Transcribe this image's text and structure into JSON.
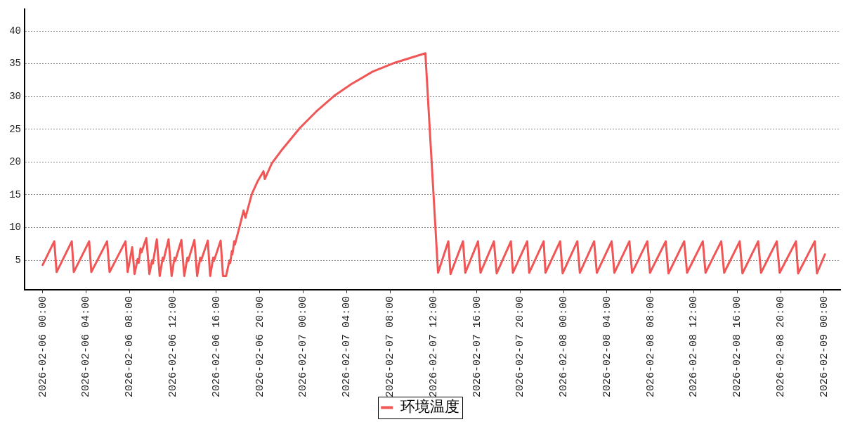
{
  "chart_data": {
    "type": "line",
    "x": [
      "2026-02-06T00:00",
      "2026-02-06T01:04",
      "2026-02-06T01:17",
      "2026-02-06T02:41",
      "2026-02-06T02:52",
      "2026-02-06T04:17",
      "2026-02-06T04:29",
      "2026-02-06T05:56",
      "2026-02-06T06:10",
      "2026-02-06T07:38",
      "2026-02-06T07:50",
      "2026-02-06T08:15",
      "2026-02-06T08:28",
      "2026-02-06T08:45",
      "2026-02-06T08:51",
      "2026-02-06T09:01",
      "2026-02-06T09:06",
      "2026-02-06T09:33",
      "2026-02-06T09:50",
      "2026-02-06T10:05",
      "2026-02-06T10:09",
      "2026-02-06T10:31",
      "2026-02-06T10:47",
      "2026-02-06T11:04",
      "2026-02-06T11:07",
      "2026-02-06T11:36",
      "2026-02-06T11:53",
      "2026-02-06T12:09",
      "2026-02-06T12:13",
      "2026-02-06T12:47",
      "2026-02-06T13:03",
      "2026-02-06T13:20",
      "2026-02-06T13:24",
      "2026-02-06T13:59",
      "2026-02-06T14:14",
      "2026-02-06T14:31",
      "2026-02-06T14:35",
      "2026-02-06T15:13",
      "2026-02-06T15:26",
      "2026-02-06T15:43",
      "2026-02-06T15:47",
      "2026-02-06T16:24",
      "2026-02-06T16:37",
      "2026-02-06T16:54",
      "2026-02-06T17:13",
      "2026-02-06T17:17",
      "2026-02-06T17:26",
      "2026-02-06T17:29",
      "2026-02-06T17:39",
      "2026-02-06T17:43",
      "2026-02-06T18:11",
      "2026-02-06T18:31",
      "2026-02-06T18:41",
      "2026-02-06T19:16",
      "2026-02-06T19:49",
      "2026-02-06T20:21",
      "2026-02-06T20:28",
      "2026-02-06T21:07",
      "2026-02-06T21:58",
      "2026-02-06T23:42",
      "2026-02-07T01:12",
      "2026-02-07T02:56",
      "2026-02-07T04:27",
      "2026-02-07T06:24",
      "2026-02-07T08:20",
      "2026-02-07T11:16",
      "2026-02-07T12:26",
      "2026-02-07T13:23",
      "2026-02-07T13:35",
      "2026-02-07T14:44",
      "2026-02-07T14:57",
      "2026-02-07T16:07",
      "2026-02-07T16:21",
      "2026-02-07T17:35",
      "2026-02-07T17:50",
      "2026-02-07T19:09",
      "2026-02-07T19:20",
      "2026-02-07T20:39",
      "2026-02-07T20:50",
      "2026-02-07T22:10",
      "2026-02-07T22:20",
      "2026-02-07T23:41",
      "2026-02-07T23:55",
      "2026-02-08T01:16",
      "2026-02-08T01:30",
      "2026-02-08T02:49",
      "2026-02-08T03:04",
      "2026-02-08T04:26",
      "2026-02-08T04:41",
      "2026-02-08T06:04",
      "2026-02-08T06:19",
      "2026-02-08T07:43",
      "2026-02-08T07:58",
      "2026-02-08T09:25",
      "2026-02-08T09:40",
      "2026-02-08T11:07",
      "2026-02-08T11:23",
      "2026-02-08T12:50",
      "2026-02-08T13:05",
      "2026-02-08T14:32",
      "2026-02-08T14:48",
      "2026-02-08T16:14",
      "2026-02-08T16:29",
      "2026-02-08T17:56",
      "2026-02-08T18:12",
      "2026-02-08T19:39",
      "2026-02-08T19:55",
      "2026-02-08T21:25",
      "2026-02-08T21:37",
      "2026-02-08T23:09",
      "2026-02-08T23:21",
      "2026-02-09T00:05"
    ],
    "series": [
      {
        "name": "环境温度",
        "color": "#f05656",
        "values": [
          4.3,
          7.9,
          3.2,
          7.9,
          3.2,
          7.9,
          3.2,
          7.9,
          3.2,
          7.9,
          3.2,
          7.0,
          2.9,
          5.2,
          4.6,
          6.8,
          6.2,
          8.4,
          2.9,
          5.0,
          4.5,
          8.2,
          2.6,
          5.4,
          4.9,
          8.2,
          2.6,
          5.4,
          4.9,
          8.1,
          2.6,
          5.4,
          4.9,
          8.1,
          2.6,
          5.4,
          4.9,
          8.0,
          2.6,
          5.4,
          4.9,
          8.0,
          2.6,
          2.6,
          5.0,
          4.6,
          6.4,
          5.9,
          7.9,
          7.4,
          10.4,
          12.6,
          11.5,
          15.1,
          17.1,
          18.6,
          17.4,
          19.8,
          21.7,
          25.2,
          27.7,
          30.2,
          31.9,
          33.8,
          35.1,
          36.6,
          3.1,
          7.9,
          2.9,
          7.9,
          3.1,
          7.9,
          3.1,
          7.9,
          3.0,
          7.9,
          3.1,
          7.9,
          3.1,
          7.9,
          3.1,
          7.9,
          3.0,
          7.9,
          3.1,
          7.9,
          3.1,
          7.9,
          3.1,
          7.9,
          3.1,
          7.9,
          3.1,
          7.9,
          3.0,
          7.9,
          3.1,
          7.9,
          3.1,
          7.9,
          3.1,
          7.9,
          3.0,
          7.9,
          3.1,
          7.9,
          3.1,
          7.9,
          3.0,
          7.9,
          3.0,
          5.9
        ]
      }
    ],
    "xlim": [
      "2026-02-05T22:20",
      "2026-02-09T01:30"
    ],
    "xticks": [
      {
        "value": "2026-02-06T00:00",
        "label": "2026-02-06 00:00"
      },
      {
        "value": "2026-02-06T04:00",
        "label": "2026-02-06 04:00"
      },
      {
        "value": "2026-02-06T08:00",
        "label": "2026-02-06 08:00"
      },
      {
        "value": "2026-02-06T12:00",
        "label": "2026-02-06 12:00"
      },
      {
        "value": "2026-02-06T16:00",
        "label": "2026-02-06 16:00"
      },
      {
        "value": "2026-02-06T20:00",
        "label": "2026-02-06 20:00"
      },
      {
        "value": "2026-02-07T00:00",
        "label": "2026-02-07 00:00"
      },
      {
        "value": "2026-02-07T04:00",
        "label": "2026-02-07 04:00"
      },
      {
        "value": "2026-02-07T08:00",
        "label": "2026-02-07 08:00"
      },
      {
        "value": "2026-02-07T12:00",
        "label": "2026-02-07 12:00"
      },
      {
        "value": "2026-02-07T16:00",
        "label": "2026-02-07 16:00"
      },
      {
        "value": "2026-02-07T20:00",
        "label": "2026-02-07 20:00"
      },
      {
        "value": "2026-02-08T00:00",
        "label": "2026-02-08 00:00"
      },
      {
        "value": "2026-02-08T04:00",
        "label": "2026-02-08 04:00"
      },
      {
        "value": "2026-02-08T08:00",
        "label": "2026-02-08 08:00"
      },
      {
        "value": "2026-02-08T12:00",
        "label": "2026-02-08 12:00"
      },
      {
        "value": "2026-02-08T16:00",
        "label": "2026-02-08 16:00"
      },
      {
        "value": "2026-02-08T20:00",
        "label": "2026-02-08 20:00"
      },
      {
        "value": "2026-02-09T00:00",
        "label": "2026-02-09 00:00"
      }
    ],
    "ylim": [
      0.5,
      43.3
    ],
    "yticks": [
      5,
      10,
      15,
      20,
      25,
      30,
      35,
      40
    ],
    "grid": "y",
    "legend": "bottom",
    "line_style": "solid"
  }
}
